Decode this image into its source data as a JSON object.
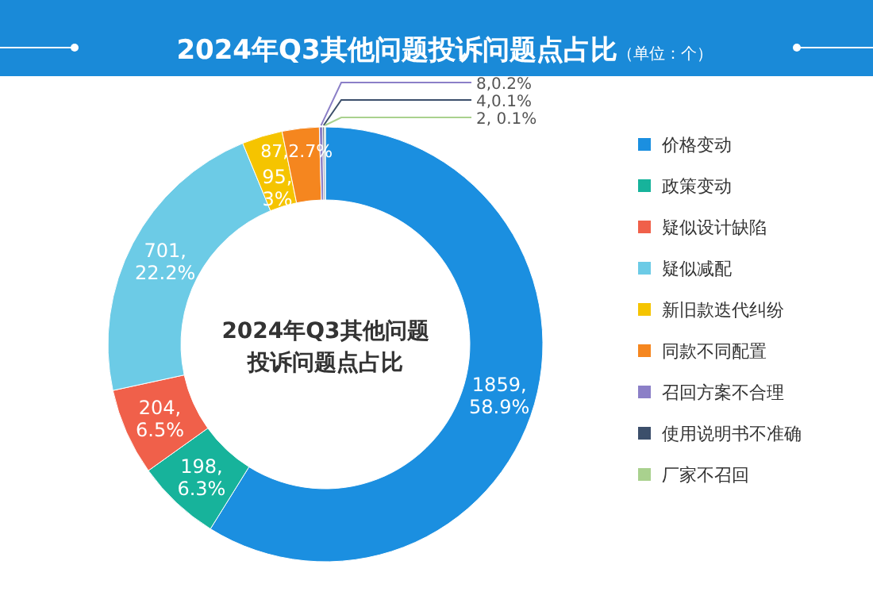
{
  "chart_data": {
    "type": "donut",
    "title": "2024年Q3其他问题投诉问题点占比",
    "subtitle": "（单位：个）",
    "annotations": [
      "2024年Q3其他问题投诉问题点占比"
    ],
    "categories": [
      "价格变动",
      "政策变动",
      "疑似设计缺陷",
      "疑似减配",
      "新旧款迭代纠纷",
      "同款不同配置",
      "召回方案不合理",
      "使用说明书不准确",
      "厂家不召回"
    ],
    "values": [
      1859,
      198,
      204,
      701,
      95,
      87,
      8,
      4,
      2
    ],
    "value_labels": [
      "1859, 58.9%",
      "198, 6.3%",
      "204, 6.5%",
      "701, 22.2%",
      "95, 3%",
      "87,2.7%",
      "8,0.2%",
      "4,0.1%",
      "2, 0.1%"
    ],
    "colors": [
      "#1b8fe0",
      "#17b39b",
      "#f0604a",
      "#6ccbe6",
      "#f5c400",
      "#f5861f",
      "#8b7fc7",
      "#3c4f6b",
      "#a9d18e"
    ],
    "legend": "right"
  }
}
